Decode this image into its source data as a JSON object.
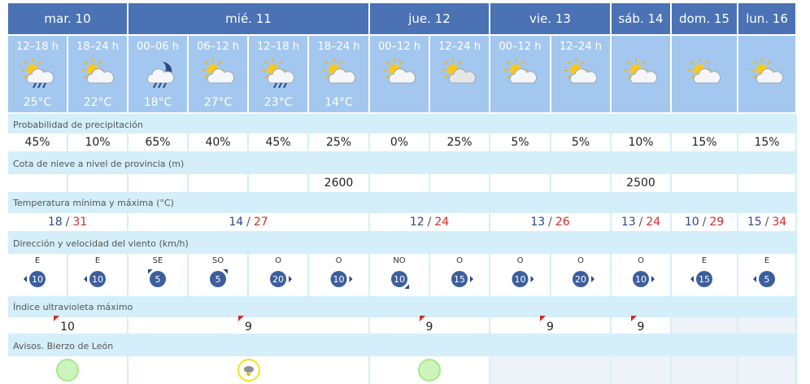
{
  "separator": "/",
  "labels": {
    "precipitation": "Probabilidad de precipitación",
    "snow": "Cota de nieve a nivel de provincia (m)",
    "temperature": "Temperatura mínima y máxima (°C)",
    "wind": "Dirección y velocidad del viento (km/h)",
    "uv": "Índice ultravioleta máximo",
    "warnings": "Avisos. Bierzo de León"
  },
  "days": [
    {
      "label": "mar. 10",
      "temperature": {
        "min": "18",
        "max": "31"
      },
      "uv": "10",
      "warning": "green",
      "periods": [
        {
          "label": "12–18 h",
          "sky": "sun-rain",
          "temperature": "25°C",
          "precipitation": "45%",
          "snow": null,
          "wind": {
            "direction": "E",
            "speed": "10"
          }
        },
        {
          "label": "18–24 h",
          "sky": "sun-cloud",
          "temperature": "22°C",
          "precipitation": "10%",
          "snow": null,
          "wind": {
            "direction": "E",
            "speed": "10"
          }
        }
      ]
    },
    {
      "label": "mié. 11",
      "temperature": {
        "min": "14",
        "max": "27"
      },
      "uv": "9",
      "warning": "yellow",
      "periods": [
        {
          "label": "00–06 h",
          "sky": "moon-rain",
          "temperature": "18°C",
          "precipitation": "65%",
          "snow": null,
          "wind": {
            "direction": "SE",
            "speed": "5"
          }
        },
        {
          "label": "06–12 h",
          "sky": "sun-cloud",
          "temperature": "27°C",
          "precipitation": "40%",
          "snow": null,
          "wind": {
            "direction": "SO",
            "speed": "5"
          }
        },
        {
          "label": "12–18 h",
          "sky": "sun-rain",
          "temperature": "23°C",
          "precipitation": "45%",
          "snow": null,
          "wind": {
            "direction": "O",
            "speed": "20"
          }
        },
        {
          "label": "18–24 h",
          "sky": "sun-cloud",
          "temperature": "14°C",
          "precipitation": "25%",
          "snow": "2600",
          "wind": {
            "direction": "O",
            "speed": "10"
          }
        }
      ]
    },
    {
      "label": "jue. 12",
      "temperature": {
        "min": "12",
        "max": "24"
      },
      "uv": "9",
      "warning": "green",
      "periods": [
        {
          "label": "00–12 h",
          "sky": "sun-cloud",
          "temperature": null,
          "precipitation": "0%",
          "snow": null,
          "wind": {
            "direction": "NO",
            "speed": "10"
          }
        },
        {
          "label": "12–24 h",
          "sky": "cloudy",
          "temperature": null,
          "precipitation": "25%",
          "snow": null,
          "wind": {
            "direction": "O",
            "speed": "15"
          }
        }
      ]
    },
    {
      "label": "vie. 13",
      "temperature": {
        "min": "13",
        "max": "26"
      },
      "uv": "9",
      "warning": null,
      "periods": [
        {
          "label": "00–12 h",
          "sky": "sun-cloud",
          "temperature": null,
          "precipitation": "5%",
          "snow": null,
          "wind": {
            "direction": "O",
            "speed": "10"
          }
        },
        {
          "label": "12–24 h",
          "sky": "sun-cloud",
          "temperature": null,
          "precipitation": "5%",
          "snow": null,
          "wind": {
            "direction": "O",
            "speed": "20"
          }
        }
      ]
    },
    {
      "label": "sáb. 14",
      "temperature": {
        "min": "13",
        "max": "24"
      },
      "uv": "9",
      "warning": null,
      "periods": [
        {
          "label": null,
          "sky": "sun-cloud",
          "temperature": null,
          "precipitation": "10%",
          "snow": "2500",
          "wind": {
            "direction": "O",
            "speed": "10"
          }
        }
      ]
    },
    {
      "label": "dom. 15",
      "temperature": {
        "min": "10",
        "max": "29"
      },
      "uv": null,
      "warning": null,
      "periods": [
        {
          "label": null,
          "sky": "sun-cloud",
          "temperature": null,
          "precipitation": "15%",
          "snow": null,
          "wind": {
            "direction": "E",
            "speed": "15"
          }
        }
      ]
    },
    {
      "label": "lun. 16",
      "temperature": {
        "min": "15",
        "max": "34"
      },
      "uv": null,
      "warning": null,
      "periods": [
        {
          "label": null,
          "sky": "sun-cloud",
          "temperature": null,
          "precipitation": "15%",
          "snow": null,
          "wind": {
            "direction": "E",
            "speed": "5"
          }
        }
      ]
    }
  ]
}
